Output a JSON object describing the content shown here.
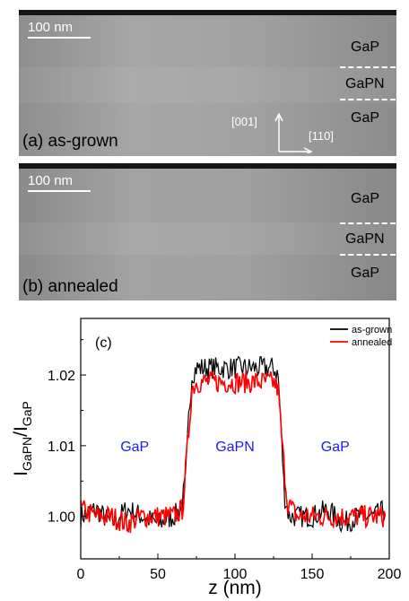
{
  "panel_a": {
    "scale_bar": "100 nm",
    "label": "(a) as-grown",
    "layers": [
      "GaP",
      "GaPN",
      "GaP"
    ],
    "dir_vertical": "[001]",
    "dir_horizontal": "[110]"
  },
  "panel_b": {
    "scale_bar": "100 nm",
    "label": "(b) annealed",
    "layers": [
      "GaP",
      "GaPN",
      "GaP"
    ]
  },
  "chart_data": {
    "type": "line",
    "panel_label": "(c)",
    "xlabel": "z (nm)",
    "ylabel_main": "I",
    "ylabel_num_sub": "GaPN",
    "ylabel_slash": "/I",
    "ylabel_den_sub": "GaP",
    "xlim": [
      0,
      200
    ],
    "ylim": [
      0.994,
      1.028
    ],
    "xticks": [
      "0",
      "50",
      "100",
      "150",
      "200"
    ],
    "yticks": [
      "1.00",
      "1.01",
      "1.02"
    ],
    "grid": false,
    "legend_position": "top-right",
    "region_labels": [
      {
        "text": "GaP",
        "x": 35,
        "y": 1.01
      },
      {
        "text": "GaPN",
        "x": 100,
        "y": 1.01
      },
      {
        "text": "GaP",
        "x": 165,
        "y": 1.01
      }
    ],
    "series": [
      {
        "name": "as-grown",
        "color": "#000000",
        "x": [
          0,
          10,
          20,
          30,
          40,
          50,
          60,
          65,
          68,
          70,
          72,
          75,
          80,
          90,
          100,
          110,
          120,
          125,
          128,
          130,
          132,
          135,
          140,
          150,
          160,
          170,
          180,
          190,
          198
        ],
        "y": [
          1.0,
          1.001,
          0.999,
          1.001,
          1.0,
          0.999,
          1.0,
          1.001,
          1.005,
          1.014,
          1.02,
          1.021,
          1.021,
          1.021,
          1.021,
          1.021,
          1.021,
          1.021,
          1.02,
          1.012,
          1.003,
          1.0,
          1.0,
          1.0,
          1.001,
          0.999,
          1.0,
          1.0,
          1.001
        ]
      },
      {
        "name": "annealed",
        "color": "#ff0000",
        "x": [
          0,
          10,
          20,
          30,
          40,
          50,
          60,
          66,
          70,
          72,
          75,
          80,
          90,
          100,
          110,
          120,
          125,
          128,
          131,
          134,
          140,
          150,
          160,
          170,
          180,
          190,
          198
        ],
        "y": [
          1.001,
          1.0,
          1.0,
          0.999,
          1.0,
          1.0,
          1.0,
          1.001,
          1.012,
          1.018,
          1.019,
          1.019,
          1.019,
          1.019,
          1.019,
          1.019,
          1.019,
          1.018,
          1.009,
          1.002,
          1.0,
          1.0,
          1.0,
          1.0,
          1.0,
          1.0,
          1.0
        ]
      }
    ]
  }
}
